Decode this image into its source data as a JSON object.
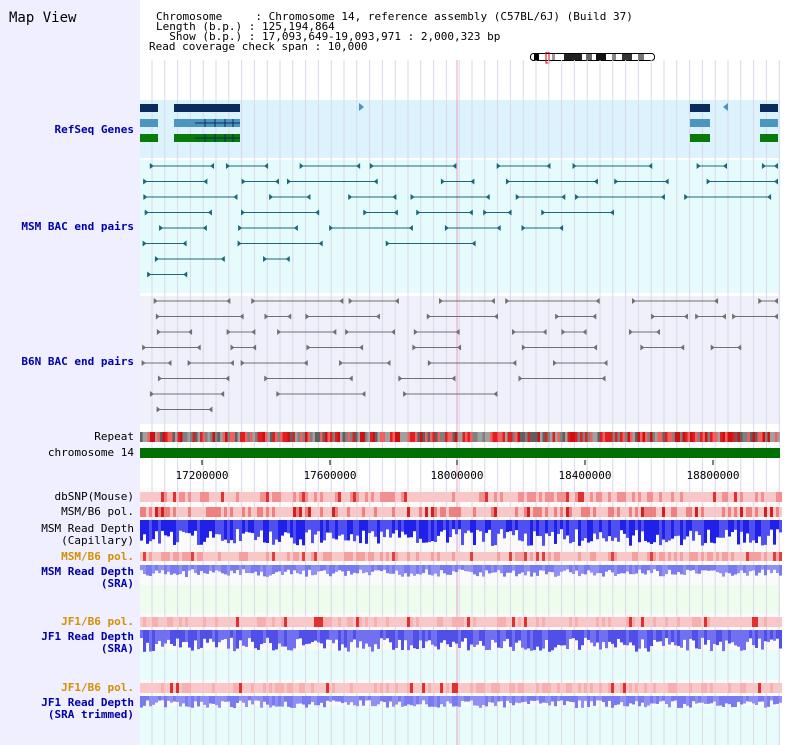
{
  "page": {
    "title": "Map View"
  },
  "info": {
    "line1": "Chromosome     : Chromosome 14, reference assembly (C57BL/6J) (Build 37)",
    "line2": "Length (b.p.) : 125,194,864",
    "line3": "  Show (b.p.) : 17,093,649-19,093,971 : 2,000,323 bp",
    "line4": "Read coverage check span : 10,000"
  },
  "tracks": {
    "refseq": "RefSeq Genes",
    "msm_bac": "MSM BAC end pairs",
    "b6n_bac": "B6N BAC end pairs",
    "repeat": "Repeat",
    "chromosome": "chromosome 14",
    "dbsnp": "dbSNP(Mouse)",
    "msm_b6_pol": "MSM/B6 pol.",
    "msm_depth_cap_1": "MSM Read Depth",
    "msm_depth_cap_2": "(Capillary)",
    "msm_b6_pol_2": "MSM/B6 pol.",
    "msm_depth_sra_1": "MSM Read Depth",
    "msm_depth_sra_2": "(SRA)",
    "jf1_b6_pol": "JF1/B6 pol.",
    "jf1_depth_sra_1": "JF1 Read Depth",
    "jf1_depth_sra_2": "(SRA)",
    "jf1_b6_pol_2": "JF1/B6 pol.",
    "jf1_depth_trim_1": "JF1 Read Depth",
    "jf1_depth_trim_2": "(SRA trimmed)"
  },
  "axis": {
    "ticks": [
      "17200000",
      "17600000",
      "18000000",
      "18400000",
      "18800000"
    ]
  },
  "colors": {
    "leftpane": "#efefff",
    "refseq_bg": "#dcf2fc",
    "msm_bg": "#e6fcfc",
    "b6n_bg": "#f0f0fb",
    "msm_track": "#1a6878",
    "b6n_track": "#707070",
    "gene_dark": "#0a2c5c",
    "gene_mid": "#4a96c0",
    "gene_green": "#0a7a0a",
    "chrom_bar": "#007000",
    "label_blue": "#0000aa",
    "label_orange": "#d49000"
  }
}
